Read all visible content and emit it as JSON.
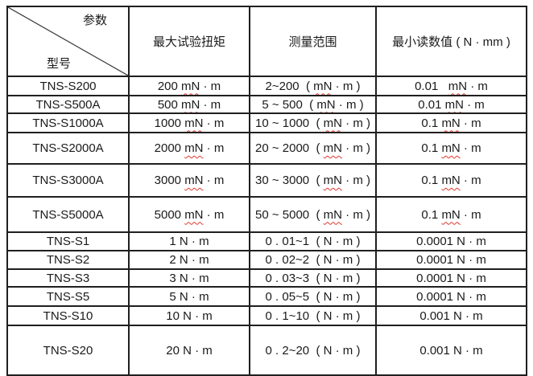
{
  "colors": {
    "border": "#1f1f1f",
    "text": "#1a1a1a",
    "spellcheck_underline": "#e0362c",
    "background": "#ffffff"
  },
  "table": {
    "corner": {
      "param_label": "参数",
      "model_label": "型号"
    },
    "headers": {
      "max_torque": "最大试验扭矩",
      "range": "测量范围",
      "min_reading": "最小读数值 ( N · mm )"
    },
    "rows": [
      {
        "model": "TNS-S200",
        "torque": {
          "pre": "200 ",
          "sq": "mN",
          "post": " · m"
        },
        "range": {
          "pre": "2~200  ( ",
          "sq": "mN",
          "post": " · m )"
        },
        "min": {
          "pre": "0.01   ",
          "sq": "mN",
          "post": " · m"
        }
      },
      {
        "model": "TNS-S500A",
        "torque": {
          "pre": "500 ",
          "sq": "mN",
          "post": " · m"
        },
        "range": {
          "pre": "5 ~ 500  ( ",
          "sq": "mN",
          "post": " · m )"
        },
        "min": {
          "pre": "0.01 ",
          "sq": "mN",
          "post": " · m"
        }
      },
      {
        "model": "TNS-S1000A",
        "torque": {
          "pre": "1000 ",
          "sq": "mN",
          "post": " · m"
        },
        "range": {
          "pre": "10 ~ 1000  ( ",
          "sq": "mN",
          "post": " · m )"
        },
        "min": {
          "pre": "0.1 ",
          "sq": "mN",
          "post": " · m"
        }
      },
      {
        "model": "TNS-S2000A",
        "torque": {
          "pre": "2000 ",
          "sq": "mN",
          "post": " · m"
        },
        "range": {
          "pre": "20 ~ 2000  ( ",
          "sq": "mN",
          "post": " · m )"
        },
        "min": {
          "pre": "0.1 ",
          "sq": "mN",
          "post": " · m"
        }
      },
      {
        "model": "TNS-S3000A",
        "torque": {
          "pre": "3000 ",
          "sq": "mN",
          "post": " · m"
        },
        "range": {
          "pre": "30 ~ 3000  ( ",
          "sq": "mN",
          "post": " · m )"
        },
        "min": {
          "pre": "0.1 ",
          "sq": "mN",
          "post": " · m"
        }
      },
      {
        "model": "TNS-S5000A",
        "torque": {
          "pre": "5000 ",
          "sq": "mN",
          "post": " · m"
        },
        "range": {
          "pre": "50 ~ 5000  ( ",
          "sq": "mN",
          "post": " · m )"
        },
        "min": {
          "pre": "0.1 ",
          "sq": "mN",
          "post": " · m"
        }
      },
      {
        "model": "TNS-S1",
        "torque": {
          "pre": "1 N · m"
        },
        "range": {
          "pre": "0 . 01~1  ( N · m )"
        },
        "min": {
          "pre": "0.0001 N · m"
        }
      },
      {
        "model": "TNS-S2",
        "torque": {
          "pre": "2 N · m"
        },
        "range": {
          "pre": "0 . 02~2  ( N · m )"
        },
        "min": {
          "pre": "0.0001 N · m"
        }
      },
      {
        "model": "TNS-S3",
        "torque": {
          "pre": "3 N · m"
        },
        "range": {
          "pre": "0 . 03~3  ( N · m )"
        },
        "min": {
          "pre": "0.0001 N · m"
        }
      },
      {
        "model": "TNS-S5",
        "torque": {
          "pre": "5 N · m"
        },
        "range": {
          "pre": "0 . 05~5  ( N · m )"
        },
        "min": {
          "pre": "0.0001 N · m"
        }
      },
      {
        "model": "TNS-S10",
        "torque": {
          "pre": "10 N · m"
        },
        "range": {
          "pre": "0 . 1~10  ( N · m )"
        },
        "min": {
          "pre": "0.001 N · m"
        }
      },
      {
        "model": "TNS-S20",
        "torque": {
          "pre": "20 N · m"
        },
        "range": {
          "pre": "0 . 2~20  ( N · m )"
        },
        "min": {
          "pre": "0.001 N · m"
        }
      }
    ]
  }
}
